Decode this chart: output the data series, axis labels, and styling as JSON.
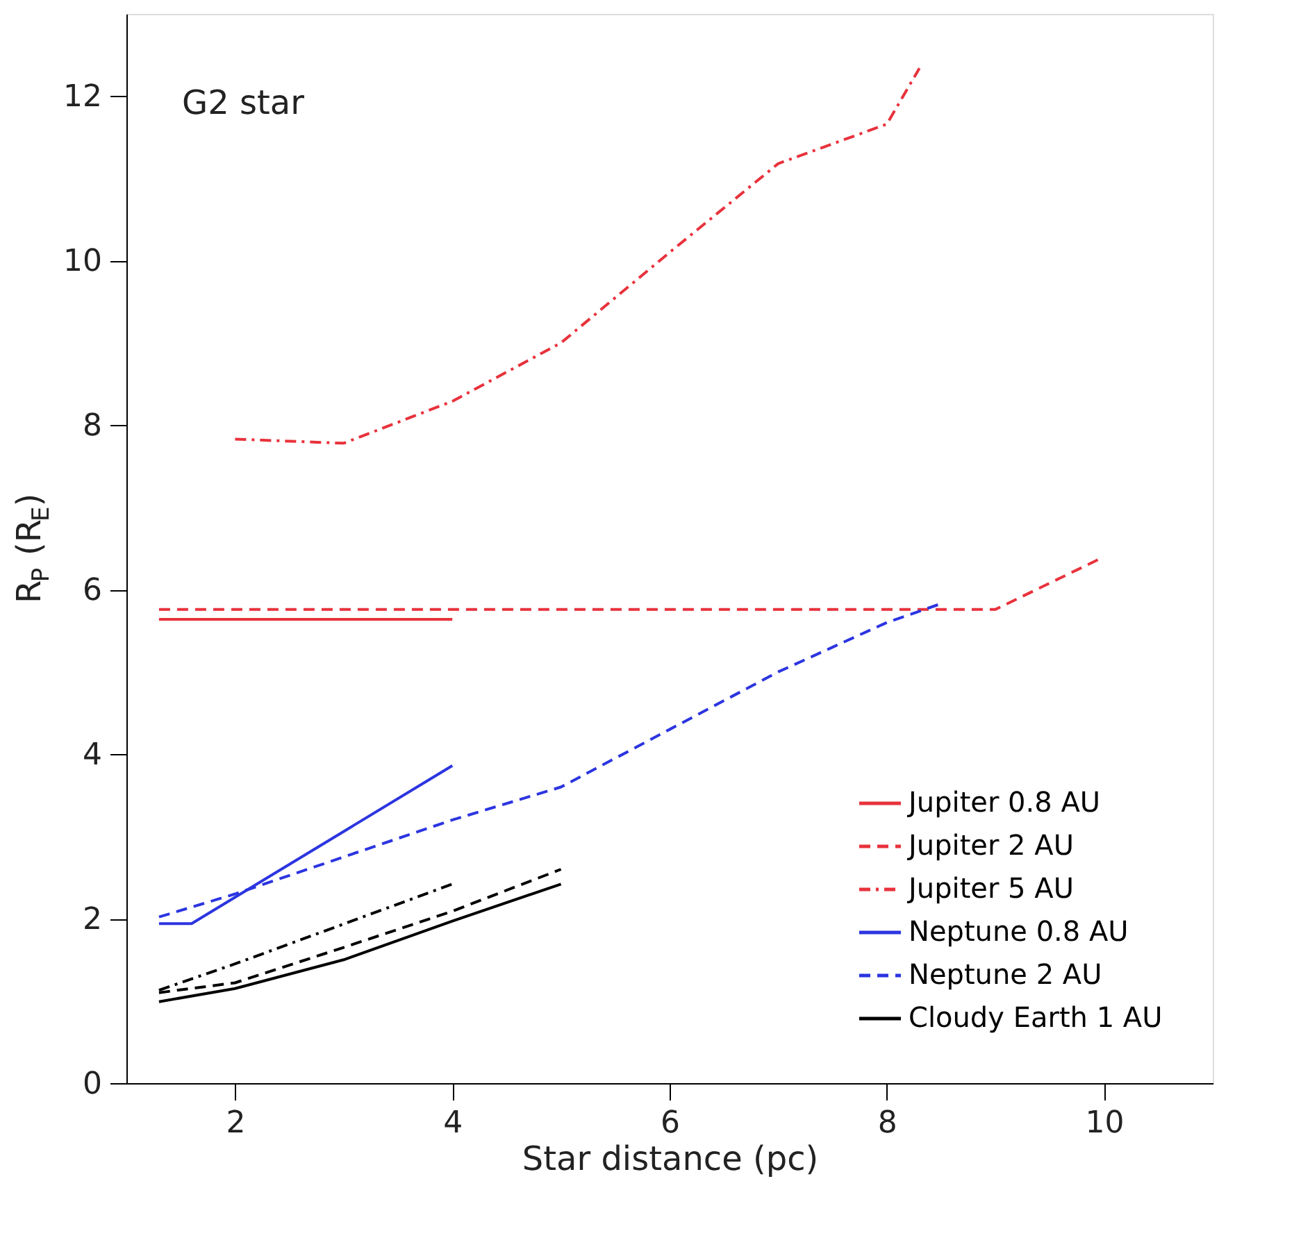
{
  "chart_data": {
    "type": "line",
    "xlabel": "Star distance (pc)",
    "ylabel": "R$_{P}$ (R$_{E}$)",
    "annotations": [
      "G2 star"
    ],
    "xlim": [
      1,
      11
    ],
    "ylim": [
      0,
      13
    ],
    "xticks": [
      2,
      4,
      6,
      8,
      10
    ],
    "yticks": [
      0,
      2,
      4,
      6,
      8,
      10,
      12
    ],
    "grid": false,
    "legend": "bottom right",
    "marker": "none",
    "series": [
      {
        "name": "Jupiter 0.8 AU",
        "color": "#e8323c",
        "line_style": "solid",
        "x": [
          1.3,
          4
        ],
        "values": [
          5.64,
          5.64
        ]
      },
      {
        "name": "Jupiter 2 AU",
        "color": "#e8323c",
        "line_style": "dashed",
        "x": [
          1.3,
          9,
          10
        ],
        "values": [
          5.76,
          5.76,
          6.4
        ]
      },
      {
        "name": "Jupiter 5 AU",
        "color": "#e8323c",
        "line_style": "dashdot",
        "x": [
          2,
          3,
          4,
          5,
          6,
          7,
          8,
          8.3
        ],
        "values": [
          7.83,
          7.78,
          8.29,
          9.0,
          10.1,
          11.18,
          11.66,
          12.34
        ]
      },
      {
        "name": "Neptune 0.8 AU",
        "color": "#2c35e0",
        "line_style": "solid",
        "x": [
          1.3,
          1.6,
          4
        ],
        "values": [
          1.94,
          1.94,
          3.86
        ]
      },
      {
        "name": "Neptune 2 AU",
        "color": "#2c35e0",
        "line_style": "dashed",
        "x": [
          1.3,
          2,
          3,
          4,
          5,
          6,
          7,
          8,
          8.5
        ],
        "values": [
          2.02,
          2.3,
          2.75,
          3.2,
          3.6,
          4.3,
          5.0,
          5.6,
          5.83
        ]
      },
      {
        "name": "Cloudy Earth 1 AU",
        "color": "#000000",
        "line_style": "solid",
        "x": [
          1.3,
          2,
          3,
          4,
          5
        ],
        "values": [
          0.99,
          1.15,
          1.5,
          1.97,
          2.42
        ]
      },
      {
        "color": "#000000",
        "line_style": "dashed",
        "x": [
          1.3,
          2,
          3,
          4,
          5
        ],
        "values": [
          1.1,
          1.22,
          1.65,
          2.09,
          2.6
        ]
      },
      {
        "color": "#000000",
        "line_style": "dashdot",
        "x": [
          1.3,
          2,
          4
        ],
        "values": [
          1.13,
          1.45,
          2.42
        ]
      }
    ]
  }
}
